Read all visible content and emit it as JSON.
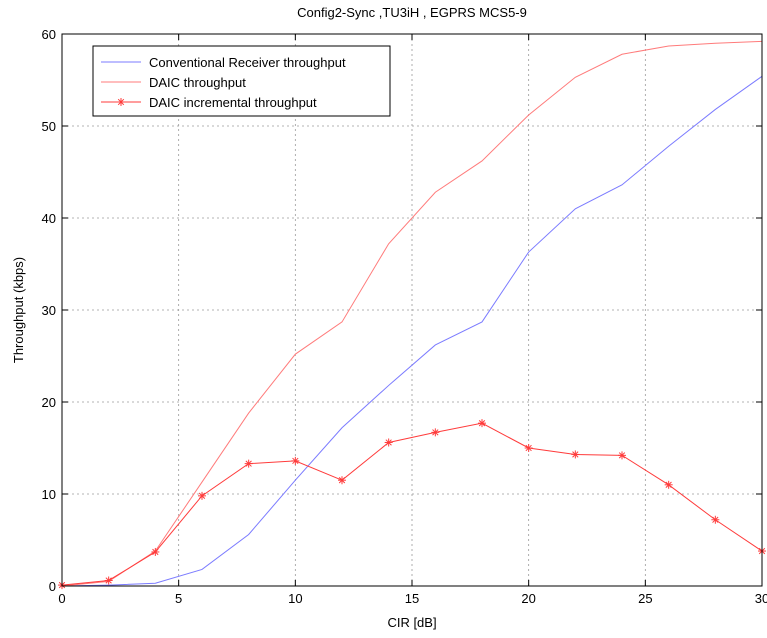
{
  "chart_data": {
    "type": "line",
    "title": "Config2-Sync ,TU3iH , EGPRS MCS5-9",
    "xlabel": "CIR [dB]",
    "ylabel": "Throughput (kbps)",
    "xlim": [
      0,
      30
    ],
    "ylim": [
      0,
      60
    ],
    "xticks": [
      0,
      5,
      10,
      15,
      20,
      25,
      30
    ],
    "yticks": [
      0,
      10,
      20,
      30,
      40,
      50,
      60
    ],
    "grid": true,
    "legend_position": "top-left",
    "x": [
      0,
      2,
      4,
      6,
      8,
      10,
      12,
      14,
      16,
      18,
      20,
      22,
      24,
      26,
      28,
      30
    ],
    "series": [
      {
        "name": "Conventional Receiver throughput",
        "color": "#7b7bff",
        "marker": "none",
        "values": [
          0.0,
          0.1,
          0.3,
          1.8,
          5.6,
          11.5,
          17.2,
          21.8,
          26.2,
          28.7,
          36.3,
          41.0,
          43.6,
          47.8,
          51.8,
          55.4
        ]
      },
      {
        "name": "DAIC throughput",
        "color": "#ff7b7b",
        "marker": "none",
        "values": [
          0.0,
          0.5,
          3.8,
          11.3,
          18.8,
          25.2,
          28.7,
          37.2,
          42.8,
          46.2,
          51.2,
          55.3,
          57.8,
          58.7,
          59.0,
          59.2
        ]
      },
      {
        "name": "DAIC incremental throughput",
        "color": "#ff3b3b",
        "marker": "asterisk",
        "values": [
          0.1,
          0.6,
          3.7,
          9.8,
          13.3,
          13.6,
          11.5,
          15.6,
          16.7,
          17.7,
          15.0,
          14.3,
          14.2,
          11.0,
          7.2,
          3.8
        ]
      }
    ]
  }
}
